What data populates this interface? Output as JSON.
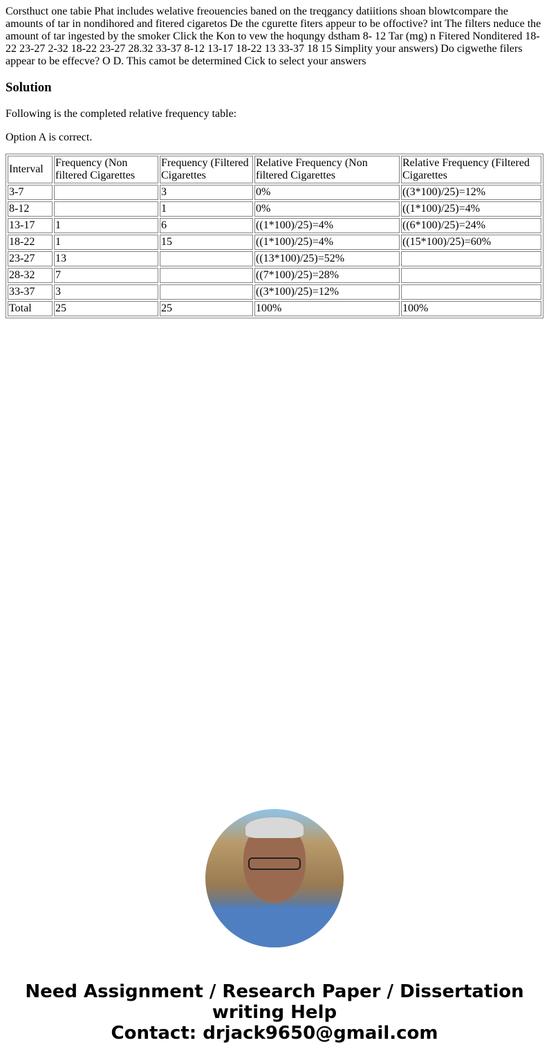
{
  "question": "Corsthuct one tabie Phat includes welative freouencies baned on the treqgancy datiitions shoan blowtcompare the amounts of tar in nondihored and fitered cigaretos De the cgurette fiters appeur to be offoctive? int The filters neduce the amount of tar ingested by the smoker Click the Kon to vew the hoqungy dstham 8- 12 Tar (mg) n Fitered Nonditered 18-22 23-27 2-32 18-22 23-27 28.32 33-37 8-12 13-17 18-22 13 33-37 18 15 Simplity your answers) Do cigwethe filers appear to be effecve? O D. This camot be determined Cick to select your answers",
  "solution_heading": "Solution",
  "intro": "Following is the completed relative frequency table:",
  "answer": "Option A is correct.",
  "table": {
    "headers": [
      "Interval",
      "Frequency (Non filtered Cigarettes",
      "Frequency (Filtered Cigarettes",
      "Relative Frequency (Non filtered Cigarettes",
      "Relative Frequency (Filtered Cigarettes"
    ],
    "rows": [
      [
        "3-7",
        "",
        "3",
        "0%",
        "((3*100)/25)=12%"
      ],
      [
        "8-12",
        "",
        "1",
        "0%",
        "((1*100)/25)=4%"
      ],
      [
        "13-17",
        "1",
        "6",
        "((1*100)/25)=4%",
        "((6*100)/25)=24%"
      ],
      [
        "18-22",
        "1",
        "15",
        "((1*100)/25)=4%",
        "((15*100)/25)=60%"
      ],
      [
        "23-27",
        "13",
        "",
        "((13*100)/25)=52%",
        ""
      ],
      [
        "28-32",
        "7",
        "",
        "((7*100)/25)=28%",
        ""
      ],
      [
        "33-37",
        "3",
        "",
        "((3*100)/25)=12%",
        ""
      ],
      [
        "Total",
        "25",
        "25",
        "100%",
        "100%"
      ]
    ]
  },
  "promo": {
    "line1": "Need Assignment / Research Paper / Dissertation writing Help",
    "line2": "Contact: drjack9650@gmail.com"
  }
}
